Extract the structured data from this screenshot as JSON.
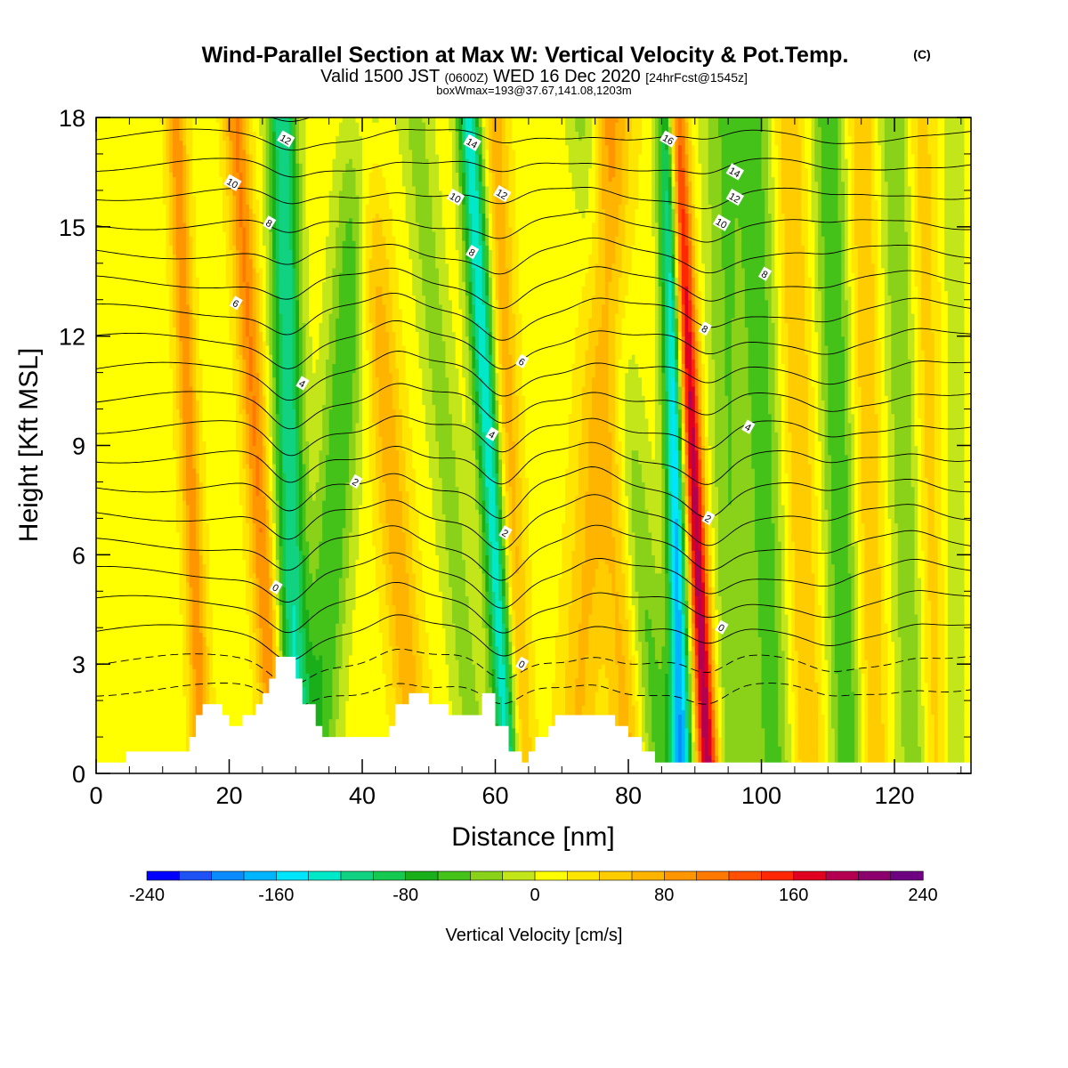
{
  "chart_data": {
    "type": "heatmap",
    "title": "Wind-Parallel Section at Max W: Vertical Velocity & Pot.Temp.",
    "title_mark": "(C)",
    "subtitle_valid": "Valid 1500 JST",
    "subtitle_utc": "(0600Z)",
    "subtitle_date": "WED 16 Dec 2020",
    "subtitle_fcst": "[24hrFcst@1545z]",
    "subtitle2": "boxWmax=193@37.67,141.08,1203m",
    "xlabel": "Distance [nm]",
    "ylabel": "Height [Kft MSL]",
    "xlim": [
      0,
      131.5
    ],
    "ylim": [
      0,
      18
    ],
    "x_ticks": [
      0,
      20,
      40,
      60,
      80,
      100,
      120
    ],
    "y_ticks": [
      0,
      3,
      6,
      9,
      12,
      15,
      18
    ],
    "colorbar": {
      "label": "Vertical Velocity [cm/s]",
      "ticks": [
        -240,
        -160,
        -80,
        0,
        80,
        160,
        240
      ],
      "levels": [
        -240,
        -220,
        -200,
        -180,
        -160,
        -140,
        -120,
        -100,
        -80,
        -60,
        -40,
        -20,
        0,
        20,
        40,
        60,
        80,
        100,
        120,
        140,
        160,
        180,
        200,
        220,
        240
      ],
      "colors": [
        "#0000ff",
        "#1e52f5",
        "#0a8cff",
        "#00b4ff",
        "#00e5ff",
        "#00e8c8",
        "#10d280",
        "#14c850",
        "#1aae1a",
        "#45c21a",
        "#8ad21a",
        "#c3e61a",
        "#ffff00",
        "#ffe600",
        "#ffcc00",
        "#ffb400",
        "#ff9600",
        "#ff7800",
        "#ff5000",
        "#ff2800",
        "#e00020",
        "#b40050",
        "#8c006e",
        "#6e0082"
      ]
    },
    "w_field_bands": [
      {
        "x_bottom": 16,
        "x_top": 12,
        "halfwidth": 1.5,
        "w": 80
      },
      {
        "x_bottom": 27,
        "x_top": 21,
        "halfwidth": 1.8,
        "w": 90
      },
      {
        "x_bottom": 30,
        "x_top": 28,
        "halfwidth": 2.2,
        "w": -130
      },
      {
        "x_bottom": 33,
        "x_top": 40,
        "halfwidth": 3.0,
        "w": -70
      },
      {
        "x_bottom": 48,
        "x_top": 40,
        "halfwidth": 2.5,
        "w": 60
      },
      {
        "x_bottom": 57,
        "x_top": 48,
        "halfwidth": 2.5,
        "w": -40
      },
      {
        "x_bottom": 62,
        "x_top": 56,
        "halfwidth": 1.8,
        "w": -150
      },
      {
        "x_bottom": 64,
        "x_top": 60,
        "halfwidth": 1.8,
        "w": 60
      },
      {
        "x_bottom": 85,
        "x_top": 74,
        "halfwidth": 3.0,
        "w": -60
      },
      {
        "x_bottom": 72,
        "x_top": 78,
        "halfwidth": 3.0,
        "w": 50
      },
      {
        "x_bottom": 80,
        "x_top": 76,
        "halfwidth": 2.5,
        "w": 60
      },
      {
        "x_bottom": 88,
        "x_top": 86,
        "halfwidth": 1.6,
        "w": -180
      },
      {
        "x_bottom": 92,
        "x_top": 87,
        "halfwidth": 1.6,
        "w": 190
      },
      {
        "x_bottom": 96,
        "x_top": 94,
        "halfwidth": 3.0,
        "w": -50
      },
      {
        "x_bottom": 102,
        "x_top": 99,
        "halfwidth": 3.0,
        "w": -60
      },
      {
        "x_bottom": 107,
        "x_top": 104,
        "halfwidth": 2.5,
        "w": 50
      },
      {
        "x_bottom": 113,
        "x_top": 110,
        "halfwidth": 2.5,
        "w": -70
      },
      {
        "x_bottom": 117,
        "x_top": 115,
        "halfwidth": 2.0,
        "w": 50
      },
      {
        "x_bottom": 123,
        "x_top": 120,
        "halfwidth": 2.5,
        "w": -50
      },
      {
        "x_bottom": 126,
        "x_top": 124,
        "halfwidth": 2.0,
        "w": 40
      },
      {
        "x_bottom": 129,
        "x_top": 129,
        "halfwidth": 1.5,
        "w": -30
      }
    ],
    "terrain": [
      [
        0,
        0.3
      ],
      [
        4.5,
        0.3
      ],
      [
        4.5,
        0.6
      ],
      [
        14,
        0.6
      ],
      [
        14,
        1.0
      ],
      [
        15,
        1.0
      ],
      [
        15,
        1.6
      ],
      [
        16,
        1.6
      ],
      [
        16,
        1.9
      ],
      [
        19,
        1.9
      ],
      [
        19,
        1.6
      ],
      [
        20,
        1.6
      ],
      [
        20,
        1.3
      ],
      [
        22,
        1.3
      ],
      [
        22,
        1.6
      ],
      [
        24,
        1.6
      ],
      [
        24,
        1.9
      ],
      [
        25,
        1.9
      ],
      [
        25,
        2.2
      ],
      [
        26,
        2.2
      ],
      [
        26,
        2.6
      ],
      [
        27,
        2.6
      ],
      [
        27,
        3.2
      ],
      [
        30,
        3.2
      ],
      [
        30,
        2.6
      ],
      [
        31,
        2.6
      ],
      [
        31,
        1.9
      ],
      [
        33,
        1.9
      ],
      [
        33,
        1.3
      ],
      [
        34,
        1.3
      ],
      [
        34,
        1.0
      ],
      [
        44,
        1.0
      ],
      [
        44,
        1.3
      ],
      [
        45,
        1.3
      ],
      [
        45,
        1.9
      ],
      [
        47,
        1.9
      ],
      [
        47,
        2.2
      ],
      [
        50,
        2.2
      ],
      [
        50,
        1.9
      ],
      [
        53,
        1.9
      ],
      [
        53,
        1.6
      ],
      [
        58,
        1.6
      ],
      [
        58,
        2.2
      ],
      [
        60,
        2.2
      ],
      [
        60,
        1.3
      ],
      [
        62,
        1.3
      ],
      [
        62,
        0.6
      ],
      [
        64,
        0.6
      ],
      [
        64,
        0.3
      ],
      [
        65,
        0.3
      ],
      [
        65,
        0.6
      ],
      [
        66,
        0.6
      ],
      [
        66,
        1.0
      ],
      [
        68,
        1.0
      ],
      [
        68,
        1.3
      ],
      [
        69,
        1.3
      ],
      [
        69,
        1.6
      ],
      [
        78,
        1.6
      ],
      [
        78,
        1.3
      ],
      [
        80,
        1.3
      ],
      [
        80,
        1.0
      ],
      [
        82,
        1.0
      ],
      [
        82,
        0.6
      ],
      [
        84,
        0.6
      ],
      [
        84,
        0.3
      ],
      [
        131.5,
        0.3
      ]
    ],
    "theta_contours": {
      "levels": [
        -2,
        -1,
        0,
        1,
        2,
        3,
        4,
        5,
        6,
        7,
        8,
        9,
        10,
        11,
        12,
        13,
        14,
        15,
        16,
        17,
        18
      ],
      "dashed_below": 0,
      "labels": [
        {
          "text": "0",
          "x": 27,
          "y": 5.1
        },
        {
          "text": "0",
          "x": 64,
          "y": 3.0
        },
        {
          "text": "0",
          "x": 94,
          "y": 4.0
        },
        {
          "text": "2",
          "x": 39,
          "y": 8.0
        },
        {
          "text": "2",
          "x": 61.5,
          "y": 6.6
        },
        {
          "text": "2",
          "x": 92,
          "y": 7.0
        },
        {
          "text": "4",
          "x": 31,
          "y": 10.7
        },
        {
          "text": "4",
          "x": 59.5,
          "y": 9.3
        },
        {
          "text": "4",
          "x": 98,
          "y": 9.5
        },
        {
          "text": "6",
          "x": 21,
          "y": 12.9
        },
        {
          "text": "6",
          "x": 64,
          "y": 11.3
        },
        {
          "text": "8",
          "x": 26,
          "y": 15.1
        },
        {
          "text": "8",
          "x": 56.5,
          "y": 14.3
        },
        {
          "text": "8",
          "x": 91.5,
          "y": 12.2
        },
        {
          "text": "8",
          "x": 100.5,
          "y": 13.7
        },
        {
          "text": "10",
          "x": 20.5,
          "y": 16.2
        },
        {
          "text": "10",
          "x": 54,
          "y": 15.8
        },
        {
          "text": "10",
          "x": 94,
          "y": 15.1
        },
        {
          "text": "12",
          "x": 28.5,
          "y": 17.4
        },
        {
          "text": "12",
          "x": 61,
          "y": 15.9
        },
        {
          "text": "12",
          "x": 96,
          "y": 15.8
        },
        {
          "text": "14",
          "x": 56.5,
          "y": 17.3
        },
        {
          "text": "14",
          "x": 96,
          "y": 16.5
        },
        {
          "text": "16",
          "x": 86,
          "y": 17.4
        }
      ]
    }
  }
}
